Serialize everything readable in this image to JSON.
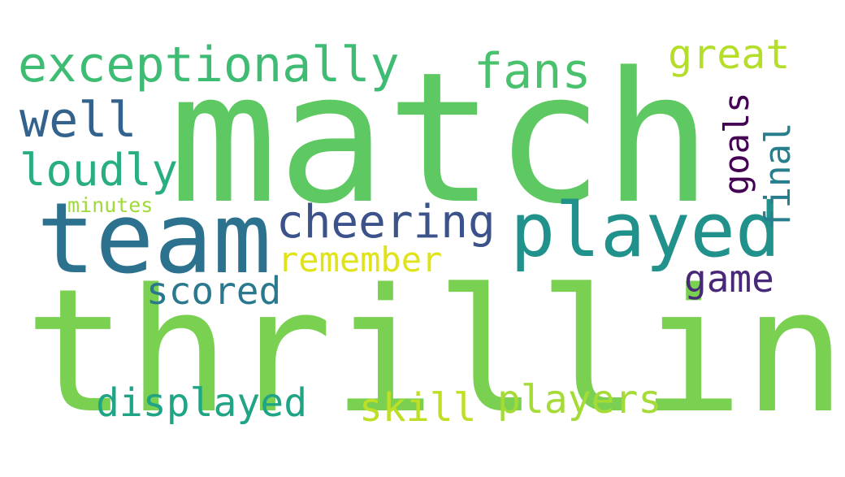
{
  "words": [
    {
      "text": "match",
      "color": "#5ec962"
    },
    {
      "text": "thrilling",
      "color": "#7ad151"
    },
    {
      "text": "team",
      "color": "#2c728e"
    },
    {
      "text": "played",
      "color": "#21918c"
    },
    {
      "text": "exceptionally",
      "color": "#3fbc73"
    },
    {
      "text": "cheering",
      "color": "#3b528b"
    },
    {
      "text": "fans",
      "color": "#4ac16d"
    },
    {
      "text": "well",
      "color": "#33638d"
    },
    {
      "text": "loudly",
      "color": "#28ae80"
    },
    {
      "text": "remember",
      "color": "#dfe318"
    },
    {
      "text": "scored",
      "color": "#2a788e"
    },
    {
      "text": "displayed",
      "color": "#20a486"
    },
    {
      "text": "skill",
      "color": "#bddf26"
    },
    {
      "text": "players",
      "color": "#a5db36"
    },
    {
      "text": "great",
      "color": "#b5de2b"
    },
    {
      "text": "goals",
      "color": "#440154"
    },
    {
      "text": "final",
      "color": "#277f8e"
    },
    {
      "text": "game",
      "color": "#482878"
    },
    {
      "text": "minutes",
      "color": "#9fda3a"
    }
  ]
}
